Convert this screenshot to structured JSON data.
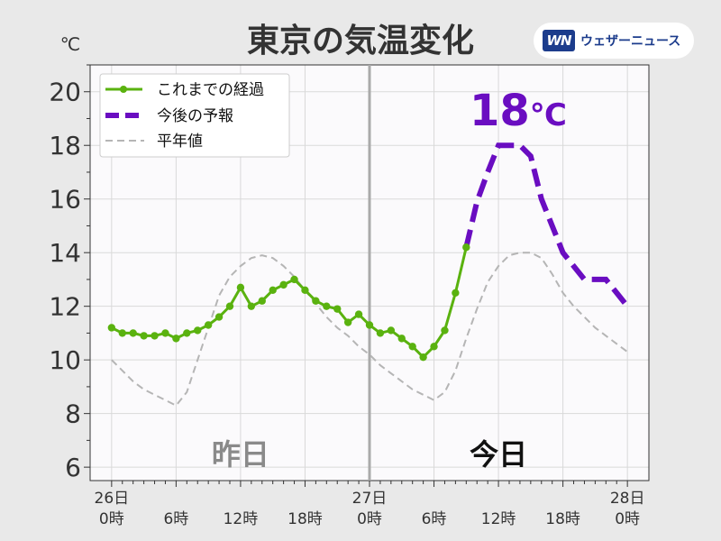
{
  "brand": {
    "logo_text": "WN",
    "name": "ウェザーニュース"
  },
  "chart_data": {
    "type": "line",
    "title": "東京の気温変化",
    "ylabel": "℃",
    "ylim": [
      5.5,
      21
    ],
    "yticks": [
      6,
      8,
      10,
      12,
      14,
      16,
      18,
      20
    ],
    "xlim": [
      -2,
      50
    ],
    "xticks": [
      {
        "x": 0,
        "line1": "26日",
        "line2": "0時"
      },
      {
        "x": 6,
        "line1": "",
        "line2": "6時"
      },
      {
        "x": 12,
        "line1": "",
        "line2": "12時"
      },
      {
        "x": 18,
        "line1": "",
        "line2": "18時"
      },
      {
        "x": 24,
        "line1": "27日",
        "line2": "0時"
      },
      {
        "x": 30,
        "line1": "",
        "line2": "6時"
      },
      {
        "x": 36,
        "line1": "",
        "line2": "12時"
      },
      {
        "x": 42,
        "line1": "",
        "line2": "18時"
      },
      {
        "x": 48,
        "line1": "28日",
        "line2": "0時"
      }
    ],
    "divider_x": 24,
    "day_labels": {
      "yesterday": "昨日",
      "today": "今日"
    },
    "peak_annotation": {
      "value": "18",
      "unit": "℃",
      "x": 38,
      "y": 18
    },
    "series": [
      {
        "name": "これまでの経過",
        "color": "#5ab20f",
        "style": "solid-markers",
        "x": [
          0,
          1,
          2,
          3,
          4,
          5,
          6,
          7,
          8,
          9,
          10,
          11,
          12,
          13,
          14,
          15,
          16,
          17,
          18,
          19,
          20,
          21,
          22,
          23,
          24,
          25,
          26,
          27,
          28,
          29,
          30,
          31,
          32,
          33
        ],
        "y": [
          11.2,
          11.0,
          11.0,
          10.9,
          10.9,
          11.0,
          10.8,
          11.0,
          11.1,
          11.3,
          11.6,
          12.0,
          12.7,
          12.0,
          12.2,
          12.6,
          12.8,
          13.0,
          12.6,
          12.2,
          12.0,
          11.9,
          11.4,
          11.7,
          11.3,
          11.0,
          11.1,
          10.8,
          10.5,
          10.1,
          10.5,
          11.1,
          12.5,
          14.2
        ]
      },
      {
        "name": "今後の予報",
        "color": "#6a0dc1",
        "style": "dashed-thick",
        "x": [
          33,
          34,
          35,
          36,
          37,
          38,
          39,
          40,
          41,
          42,
          43,
          44,
          45,
          46,
          47,
          48
        ],
        "y": [
          14.2,
          15.9,
          17.0,
          18.0,
          18.0,
          18.0,
          17.6,
          16.0,
          15.0,
          14.0,
          13.5,
          13.0,
          13.0,
          13.0,
          12.5,
          12.0
        ]
      },
      {
        "name": "平年値",
        "color": "#b5b5b5",
        "style": "dashed-thin",
        "x": [
          0,
          1,
          2,
          3,
          4,
          5,
          6,
          7,
          8,
          9,
          10,
          11,
          12,
          13,
          14,
          15,
          16,
          17,
          18,
          19,
          20,
          21,
          22,
          23,
          24,
          25,
          26,
          27,
          28,
          29,
          30,
          31,
          32,
          33,
          34,
          35,
          36,
          37,
          38,
          39,
          40,
          41,
          42,
          43,
          44,
          45,
          46,
          47,
          48
        ],
        "y": [
          10.0,
          9.6,
          9.2,
          8.9,
          8.7,
          8.5,
          8.3,
          8.8,
          10.0,
          11.2,
          12.4,
          13.1,
          13.5,
          13.8,
          13.9,
          13.8,
          13.5,
          13.1,
          12.6,
          12.1,
          11.6,
          11.2,
          10.9,
          10.5,
          10.2,
          9.8,
          9.5,
          9.2,
          8.9,
          8.7,
          8.5,
          8.8,
          9.6,
          10.8,
          11.9,
          12.9,
          13.5,
          13.9,
          14.0,
          14.0,
          13.8,
          13.2,
          12.5,
          12.0,
          11.6,
          11.2,
          10.9,
          10.6,
          10.3
        ]
      }
    ]
  }
}
